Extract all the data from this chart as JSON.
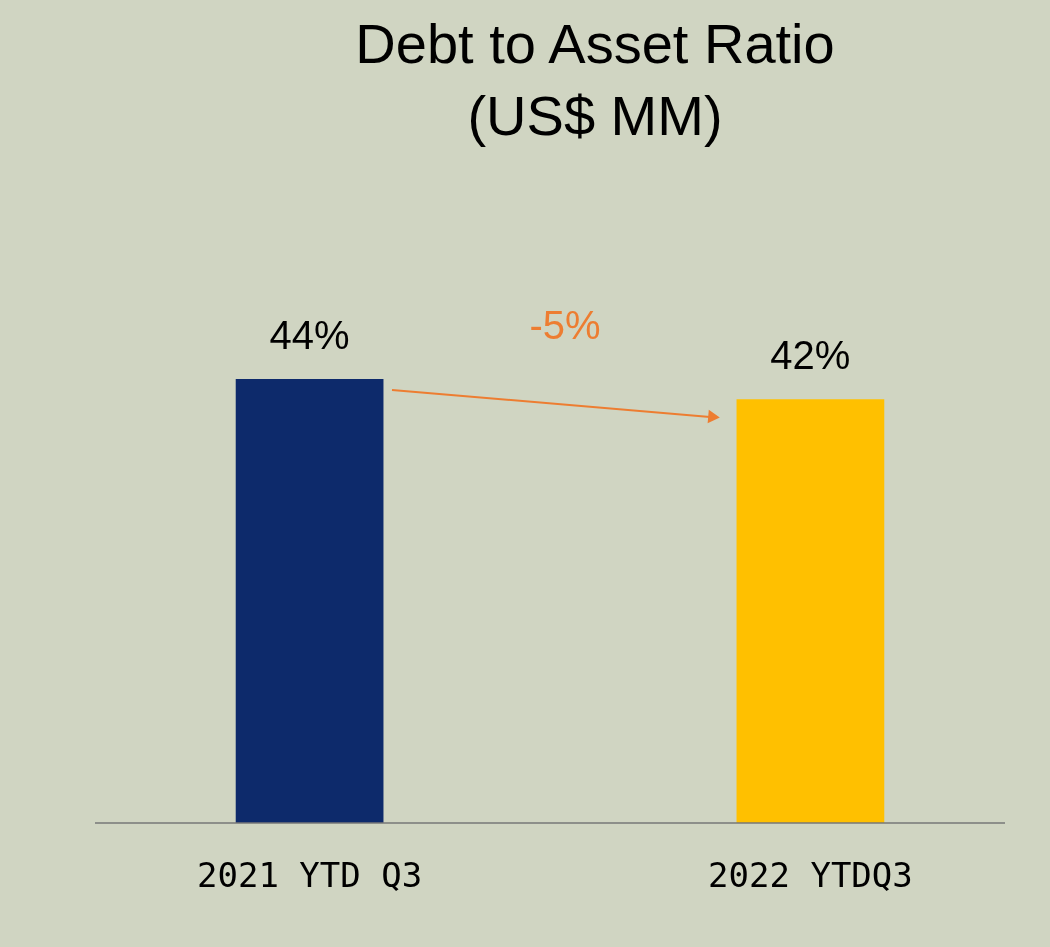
{
  "chart_data": {
    "type": "bar",
    "title": [
      "Debt to Asset Ratio",
      "(US$ MM)"
    ],
    "categories": [
      "2021 YTD Q3",
      "2022 YTDQ3"
    ],
    "values": [
      44,
      42
    ],
    "colors": [
      "#0d2a6b",
      "#ffc000"
    ],
    "value_labels": [
      "44%",
      "42%"
    ],
    "annotations": [
      "-5%"
    ],
    "grid": false
  }
}
